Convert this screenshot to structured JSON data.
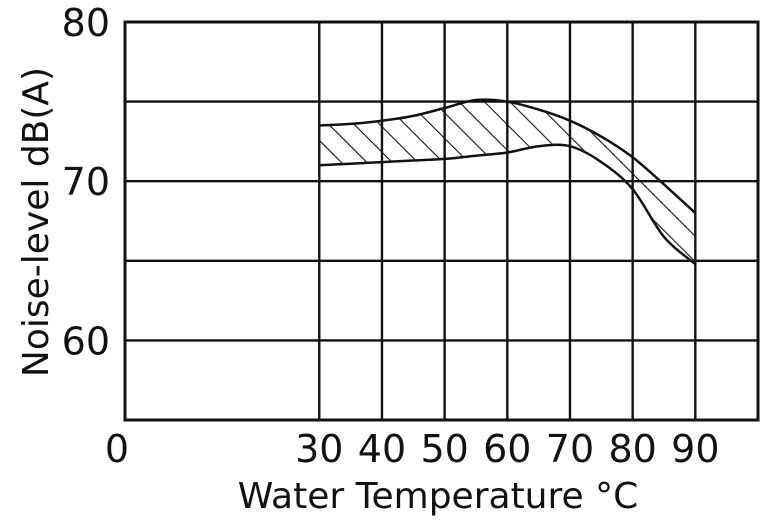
{
  "chart_data": {
    "type": "area",
    "xlabel": "Water Temperature °C",
    "ylabel": "Noise-level dB(A)",
    "xlim": [
      0,
      100
    ],
    "ylim": [
      55,
      80
    ],
    "x_ticks": [
      "0",
      "30",
      "40",
      "50",
      "60",
      "70",
      "80",
      "90"
    ],
    "y_ticks": [
      "60",
      "70",
      "80"
    ],
    "grid": true,
    "fill_pattern": "diagonal-hatch",
    "colors": {
      "line": "#111111",
      "grid": "#111111",
      "background": "#ffffff"
    },
    "band": {
      "x": [
        30,
        35,
        40,
        45,
        50,
        55,
        60,
        65,
        70,
        75,
        80,
        85,
        90
      ],
      "upper": [
        73.5,
        73.6,
        73.8,
        74.1,
        74.6,
        75.1,
        75.0,
        74.5,
        73.8,
        72.8,
        71.5,
        69.8,
        68.0
      ],
      "lower": [
        71.0,
        71.1,
        71.2,
        71.3,
        71.4,
        71.6,
        71.8,
        72.2,
        72.2,
        71.2,
        69.5,
        66.5,
        64.8
      ]
    }
  }
}
